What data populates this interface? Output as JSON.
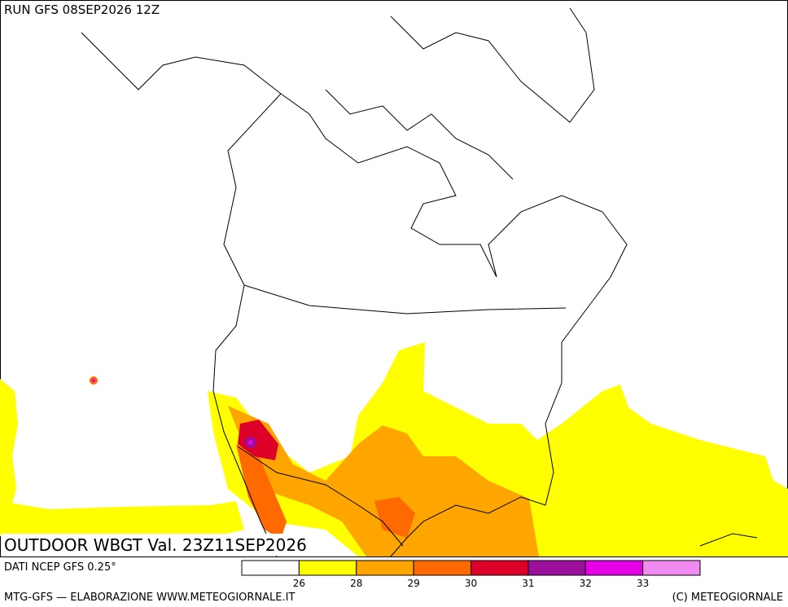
{
  "header": {
    "run": "RUN GFS 08SEP2026 12Z",
    "title": "OUTDOOR WBGT Val. 23Z11SEP2026",
    "source": "DATI NCEP GFS 0.25°"
  },
  "footer": {
    "left": "MTG-GFS — ELABORAZIONE WWW.METEOGIORNALE.IT",
    "right": "(C) METEOGIORNALE"
  },
  "legend": {
    "colors": [
      "#ffffff",
      "#ffff00",
      "#ffa500",
      "#ff6a00",
      "#dc0028",
      "#9b0f9b",
      "#e600e6",
      "#f08cf0"
    ],
    "ticks": [
      26,
      28,
      29,
      30,
      31,
      32,
      33
    ]
  }
}
